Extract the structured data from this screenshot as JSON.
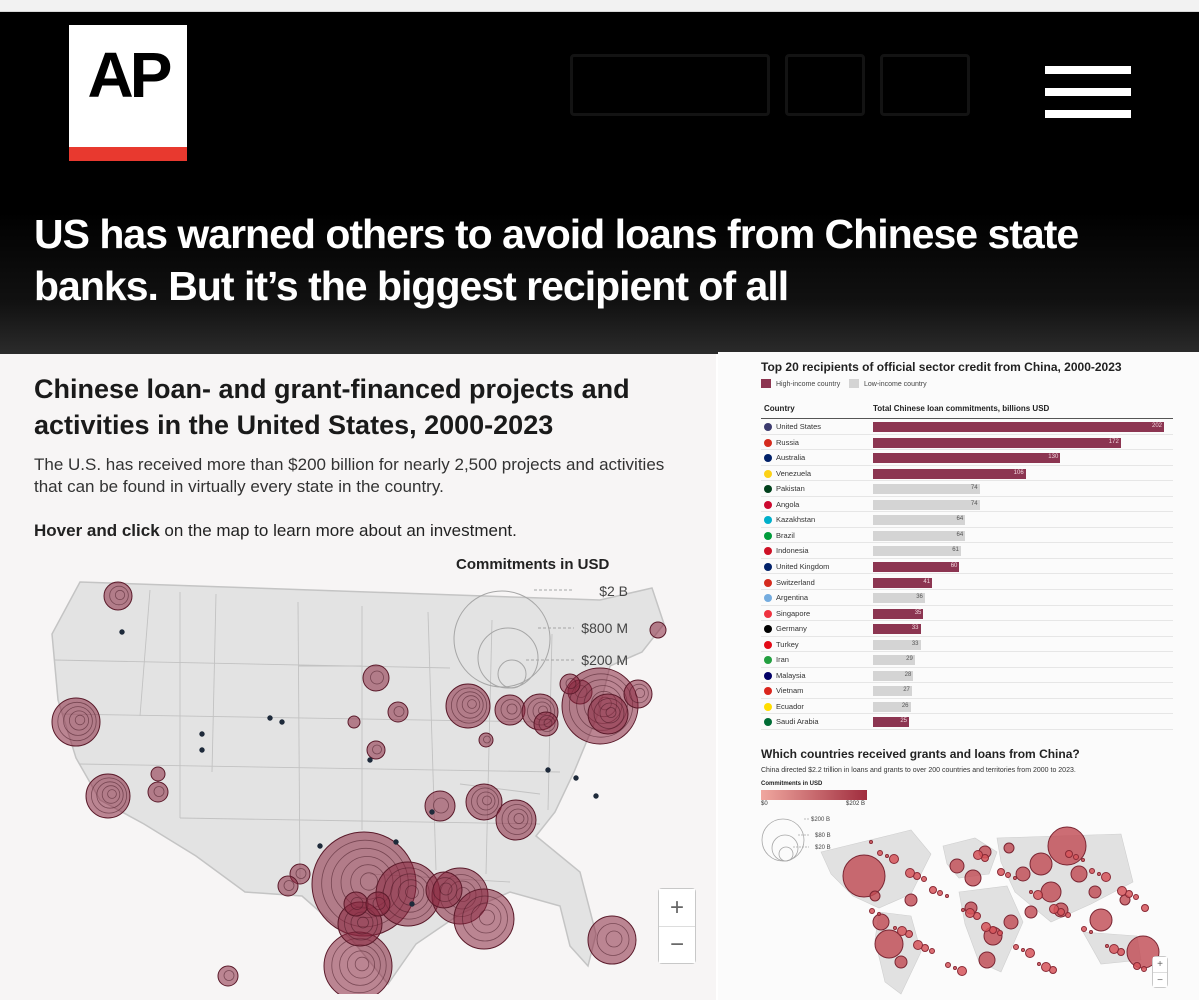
{
  "brand": {
    "logo_text": "AP"
  },
  "headline": "US has warned others to avoid loans from Chinese state banks. But it’s the biggest recipient of all",
  "map_panel": {
    "title": "Chinese loan- and grant-financed projects and activities in the United States, 2000-2023",
    "description": "The U.S. has received more than $200 billion for nearly 2,500 projects and activities that can be found in virtually every state in the country.",
    "hint_bold": "Hover and click",
    "hint_rest": " on the map to learn more about an investment.",
    "legend_title": "Commitments in USD",
    "legend_labels": [
      "$2 B",
      "$800 M",
      "$200 M"
    ],
    "zoom_in": "+",
    "zoom_out": "−"
  },
  "colors": {
    "high_income": "#8c3551",
    "low_income": "#d4d4d4",
    "bubble": "#8a2840",
    "accent_red": "#e8392f"
  },
  "chart_data": [
    {
      "type": "bar",
      "title": "Top 20 recipients of official sector credit from China, 2000-2023",
      "legend": [
        "High-income country",
        "Low-income country"
      ],
      "column_headers": [
        "Country",
        "Total Chinese loan commitments, billions USD"
      ],
      "categories": [
        "United States",
        "Russia",
        "Australia",
        "Venezuela",
        "Pakistan",
        "Angola",
        "Kazakhstan",
        "Brazil",
        "Indonesia",
        "United Kingdom",
        "Switzerland",
        "Argentina",
        "Singapore",
        "Germany",
        "Turkey",
        "Iran",
        "Malaysia",
        "Vietnam",
        "Ecuador",
        "Saudi Arabia"
      ],
      "values": [
        202,
        172,
        130,
        106,
        74,
        74,
        64,
        64,
        61,
        60,
        41,
        36,
        35,
        33,
        33,
        29,
        28,
        27,
        26,
        25
      ],
      "income": [
        "high",
        "high",
        "high",
        "high",
        "low",
        "low",
        "low",
        "low",
        "low",
        "high",
        "high",
        "low",
        "high",
        "high",
        "low",
        "low",
        "low",
        "low",
        "low",
        "high"
      ],
      "xlim": [
        0,
        202
      ]
    }
  ],
  "world_panel": {
    "title": "Which countries received grants and loans from China?",
    "description": "China directed $2.2 trillion in loans and grants to over 200 countries and territories from 2000 to 2023.",
    "scale_label": "Commitments in USD",
    "scale_min": "$0",
    "scale_max": "$202 B",
    "legend_labels": [
      "$200 B",
      "$80 B",
      "$20 B"
    ],
    "zoom_in": "+",
    "zoom_out": "−"
  }
}
